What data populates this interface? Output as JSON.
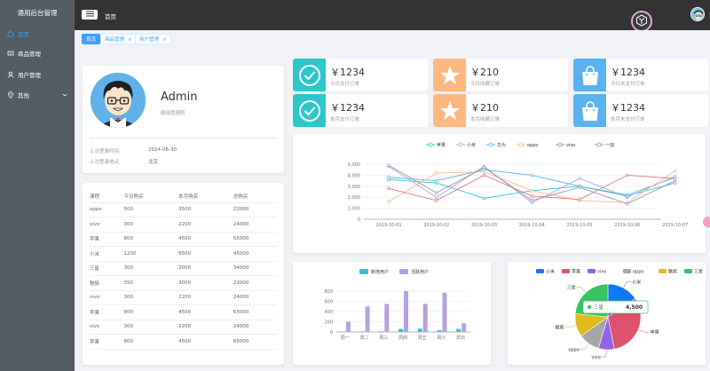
{
  "app": {
    "title": "通用后台管理"
  },
  "sidebar": {
    "items": [
      {
        "label": "首页",
        "icon": "home-icon",
        "active": true
      },
      {
        "label": "商品管理",
        "icon": "video-icon"
      },
      {
        "label": "用户管理",
        "icon": "user-icon"
      },
      {
        "label": "其他",
        "icon": "location-icon",
        "has_arrow": true
      }
    ]
  },
  "topbar": {
    "breadcrumb": "首页"
  },
  "tabs": [
    {
      "label": "首页",
      "active": true
    },
    {
      "label": "商品管理",
      "closable": true
    },
    {
      "label": "用户管理",
      "closable": true
    }
  ],
  "user": {
    "name": "Admin",
    "role": "超级管理员",
    "last_login_label": "上次登录时间:",
    "last_login": "2024-06-30",
    "last_location_label": "上次登录地点:",
    "last_location": "北京"
  },
  "table": {
    "headers": [
      "课程",
      "今日购买",
      "本月购买",
      "总购买"
    ],
    "rows": [
      [
        "oppo",
        "500",
        "3500",
        "22000"
      ],
      [
        "vivo",
        "300",
        "2200",
        "24000"
      ],
      [
        "苹果",
        "800",
        "4500",
        "65000"
      ],
      [
        "小米",
        "1200",
        "6500",
        "45000"
      ],
      [
        "三星",
        "300",
        "2000",
        "34000"
      ],
      [
        "魅族",
        "350",
        "3000",
        "22000"
      ],
      [
        "vivo",
        "300",
        "2200",
        "24000"
      ],
      [
        "苹果",
        "800",
        "4500",
        "65000"
      ],
      [
        "vivo",
        "300",
        "2200",
        "24000"
      ],
      [
        "苹果",
        "800",
        "4500",
        "65000"
      ]
    ]
  },
  "stats": [
    {
      "value": "￥1234",
      "label": "今日支付订单",
      "color": "#2ec7c9",
      "icon": "check-icon"
    },
    {
      "value": "￥210",
      "label": "今日收藏订单",
      "color": "#ffb980",
      "icon": "star-icon"
    },
    {
      "value": "￥1234",
      "label": "今日未支付订单",
      "color": "#5ab1ef",
      "icon": "bag-icon"
    },
    {
      "value": "￥1234",
      "label": "本月支付订单",
      "color": "#2ec7c9",
      "icon": "check-icon"
    },
    {
      "value": "￥210",
      "label": "本月收藏订单",
      "color": "#ffb980",
      "icon": "star-icon"
    },
    {
      "value": "￥1234",
      "label": "本月未支付订单",
      "color": "#5ab1ef",
      "icon": "bag-icon"
    }
  ],
  "chart_data": [
    {
      "type": "line",
      "x": [
        "2019-10-01",
        "2019-10-02",
        "2019-10-03",
        "2019-10-04",
        "2019-10-05",
        "2019-10-06",
        "2019-10-07"
      ],
      "ylim": [
        0,
        5000
      ],
      "yticks": [
        "0",
        "1,000",
        "2,000",
        "3,000",
        "4,000",
        "5,000"
      ],
      "legend_position": "top-center",
      "series": [
        {
          "name": "苹果",
          "color": "#2ec7c9",
          "values": [
            3600,
            3300,
            1900,
            2600,
            3000,
            2200,
            3800
          ]
        },
        {
          "name": "小米",
          "color": "#b6a2de",
          "values": [
            4800,
            2000,
            4800,
            1500,
            3700,
            2000,
            3900
          ]
        },
        {
          "name": "华为",
          "color": "#5ab1ef",
          "values": [
            3800,
            3500,
            4500,
            4000,
            3000,
            2100,
            3300
          ]
        },
        {
          "name": "oppo",
          "color": "#ffb980",
          "values": [
            1600,
            4200,
            4300,
            2600,
            1700,
            1500,
            4400
          ]
        },
        {
          "name": "vivo",
          "color": "#d87a80",
          "values": [
            2800,
            1700,
            4000,
            2100,
            1800,
            4000,
            3700
          ]
        },
        {
          "name": "一加",
          "color": "#8d98b3",
          "values": [
            4900,
            2400,
            4700,
            1700,
            2900,
            1400,
            3500
          ]
        }
      ]
    },
    {
      "type": "bar",
      "categories": [
        "周一",
        "周二",
        "周三",
        "周四",
        "周五",
        "周六",
        "周日"
      ],
      "ylim": [
        0,
        800
      ],
      "yticks": [
        "0",
        "200",
        "400",
        "600",
        "800"
      ],
      "legend_position": "top-center",
      "series": [
        {
          "name": "新增用户",
          "color": "#2ec7c9",
          "values": [
            5,
            10,
            12,
            60,
            65,
            33,
            60
          ]
        },
        {
          "name": "活跃用户",
          "color": "#b6a2de",
          "values": [
            200,
            500,
            550,
            800,
            550,
            770,
            170
          ]
        }
      ]
    },
    {
      "type": "pie",
      "legend_position": "top-center",
      "tooltip": {
        "label": "三星",
        "value": "4,500"
      },
      "series": [
        {
          "name": "小米",
          "color": "#0f78f4",
          "value": 2999
        },
        {
          "name": "苹果",
          "color": "#dd536b",
          "value": 5999
        },
        {
          "name": "vivo",
          "color": "#9462e5",
          "value": 1500
        },
        {
          "name": "oppo",
          "color": "#a6a6a6",
          "value": 1999
        },
        {
          "name": "魅族",
          "color": "#e1bb22",
          "value": 2200
        },
        {
          "name": "三星",
          "color": "#39c362",
          "value": 4500
        }
      ]
    }
  ]
}
